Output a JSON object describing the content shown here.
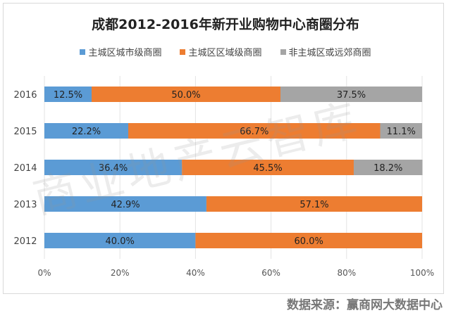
{
  "chart_data": {
    "type": "bar",
    "orientation": "horizontal",
    "stacked": "percent",
    "title": "成都2012-2016年新开业购物中心商圈分布",
    "categories": [
      "2016",
      "2015",
      "2014",
      "2013",
      "2012"
    ],
    "series": [
      {
        "name": "主城区城市级商圈",
        "color": "#5b9bd5",
        "values": [
          12.5,
          22.2,
          36.4,
          42.9,
          40.0
        ]
      },
      {
        "name": "主城区区域级商圈",
        "color": "#ed7d31",
        "values": [
          50.0,
          66.7,
          45.5,
          57.1,
          60.0
        ]
      },
      {
        "name": "非主城区或远郊商圈",
        "color": "#a5a5a5",
        "values": [
          37.5,
          11.1,
          18.2,
          0,
          0
        ]
      }
    ],
    "xlim": [
      0,
      100
    ],
    "xticks": [
      "0%",
      "20%",
      "40%",
      "60%",
      "80%",
      "100%"
    ],
    "grid": true,
    "legend_position": "top"
  },
  "watermark": "商业地产云智库",
  "source": "数据来源：赢商网大数据中心"
}
